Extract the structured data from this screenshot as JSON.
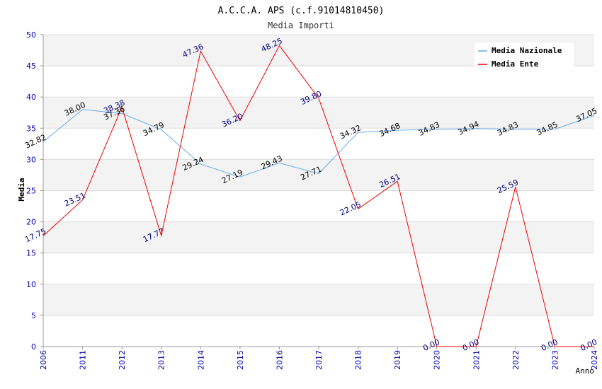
{
  "chart_data": {
    "type": "line",
    "title": "A.C.C.A. APS (c.f.91014810450)",
    "subtitle": "Media Importi",
    "xlabel": "Anno",
    "ylabel": "Media",
    "ylim": [
      0,
      50
    ],
    "yticks": [
      "0",
      "5",
      "10",
      "15",
      "20",
      "25",
      "30",
      "35",
      "40",
      "45",
      "50"
    ],
    "categories": [
      "2006",
      "2011",
      "2012",
      "2013",
      "2014",
      "2015",
      "2016",
      "2017",
      "2018",
      "2019",
      "2020",
      "2021",
      "2022",
      "2023",
      "2024"
    ],
    "legend_position": "top-right",
    "series": [
      {
        "name": "Media Nazionale",
        "color": "#66aaee",
        "label_color": "#000000",
        "values": [
          32.82,
          38.0,
          37.36,
          34.79,
          29.24,
          27.19,
          29.43,
          27.71,
          34.32,
          34.68,
          34.83,
          34.94,
          34.83,
          34.85,
          37.05
        ],
        "labels": [
          "32.82",
          "38.00",
          "37.36",
          "34.79",
          "29.24",
          "27.19",
          "29.43",
          "27.71",
          "34.32",
          "34.68",
          "34.83",
          "34.94",
          "34.83",
          "34.85",
          "37.05"
        ]
      },
      {
        "name": "Media Ente",
        "color": "#ee0000",
        "label_color": "#000080",
        "values": [
          17.75,
          23.51,
          38.38,
          17.77,
          47.36,
          36.2,
          48.25,
          39.8,
          22.05,
          26.51,
          0.0,
          0.0,
          25.59,
          0.0,
          0.0
        ],
        "labels": [
          "17.75",
          "23.51",
          "38.38",
          "17.77",
          "47.36",
          "36.20",
          "48.25",
          "39.80",
          "22.05",
          "26.51",
          "0.00",
          "0.00",
          "25.59",
          "0.00",
          "0.00"
        ]
      }
    ]
  }
}
